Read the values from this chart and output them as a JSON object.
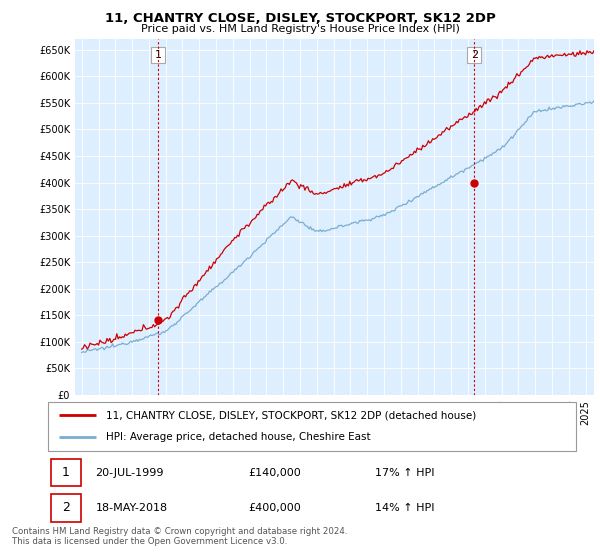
{
  "title": "11, CHANTRY CLOSE, DISLEY, STOCKPORT, SK12 2DP",
  "subtitle": "Price paid vs. HM Land Registry's House Price Index (HPI)",
  "legend_line1": "11, CHANTRY CLOSE, DISLEY, STOCKPORT, SK12 2DP (detached house)",
  "legend_line2": "HPI: Average price, detached house, Cheshire East",
  "footer": "Contains HM Land Registry data © Crown copyright and database right 2024.\nThis data is licensed under the Open Government Licence v3.0.",
  "point1_date": "20-JUL-1999",
  "point1_price": "£140,000",
  "point1_hpi": "17% ↑ HPI",
  "point2_date": "18-MAY-2018",
  "point2_price": "£400,000",
  "point2_hpi": "14% ↑ HPI",
  "property_color": "#cc0000",
  "hpi_color": "#7aadcf",
  "vline_color": "#cc0000",
  "plot_bg_color": "#ddeeff",
  "ylim": [
    0,
    670000
  ],
  "yticks": [
    0,
    50000,
    100000,
    150000,
    200000,
    250000,
    300000,
    350000,
    400000,
    450000,
    500000,
    550000,
    600000,
    650000
  ],
  "background_color": "#ffffff",
  "grid_color": "#ffffff",
  "year1": 1999.55,
  "year2": 2018.37,
  "val1_prop": 140000,
  "val2_prop": 400000
}
